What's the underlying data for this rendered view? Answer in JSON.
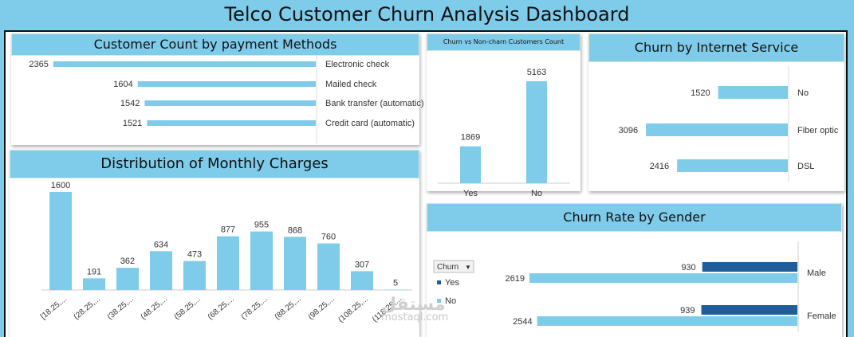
{
  "page": {
    "title": "Telco Customer Churn Analysis Dashboard"
  },
  "colors": {
    "light_bar": "#7ecbea",
    "dark_bar": "#1f5e9a",
    "header_bg": "#7ecbea"
  },
  "watermark": {
    "logo": "مستقل",
    "text": "mostaql.com"
  },
  "chart_data": [
    {
      "id": "payment",
      "type": "bar",
      "orientation": "horizontal",
      "title": "Customer Count by payment Methods",
      "categories": [
        "Electronic check",
        "Mailed check",
        "Bank transfer (automatic)",
        "Credit card (automatic)"
      ],
      "values": [
        2365,
        1604,
        1542,
        1521
      ],
      "xlim": [
        0,
        2400
      ]
    },
    {
      "id": "churn_count",
      "type": "bar",
      "title": "Churn vs Non-charn Customers Count",
      "categories": [
        "Yes",
        "No"
      ],
      "values": [
        1869,
        5163
      ],
      "ylim": [
        0,
        5400
      ]
    },
    {
      "id": "internet",
      "type": "bar",
      "orientation": "horizontal",
      "title": "Churn by Internet Service",
      "categories": [
        "No",
        "Fiber optic",
        "DSL"
      ],
      "values": [
        1520,
        3096,
        2416
      ],
      "xlim": [
        0,
        3150
      ]
    },
    {
      "id": "monthly",
      "type": "bar",
      "title": "Distribution of Monthly Charges",
      "categories": [
        "[18.25,...",
        "(28.25,...",
        "(38.25,...",
        "(48.25,...",
        "(58.25,...",
        "(68.25,...",
        "(78.25,...",
        "(88.25,...",
        "(98.25,...",
        "(108.25,...",
        "(118.25,..."
      ],
      "values": [
        1600,
        191,
        362,
        634,
        473,
        877,
        955,
        868,
        760,
        307,
        5
      ],
      "ylim": [
        0,
        1700
      ]
    },
    {
      "id": "gender",
      "type": "bar",
      "orientation": "horizontal",
      "stacked": true,
      "title": "Churn Rate by Gender",
      "categories": [
        "Male",
        "Female"
      ],
      "legend_title": "Churn",
      "legend_placement": "left",
      "series": [
        {
          "name": "Yes",
          "values": [
            930,
            939
          ],
          "color": "#1f5e9a"
        },
        {
          "name": "No",
          "values": [
            2619,
            2544
          ],
          "color": "#7ecbea"
        }
      ],
      "xlim": [
        0,
        3560
      ]
    }
  ]
}
